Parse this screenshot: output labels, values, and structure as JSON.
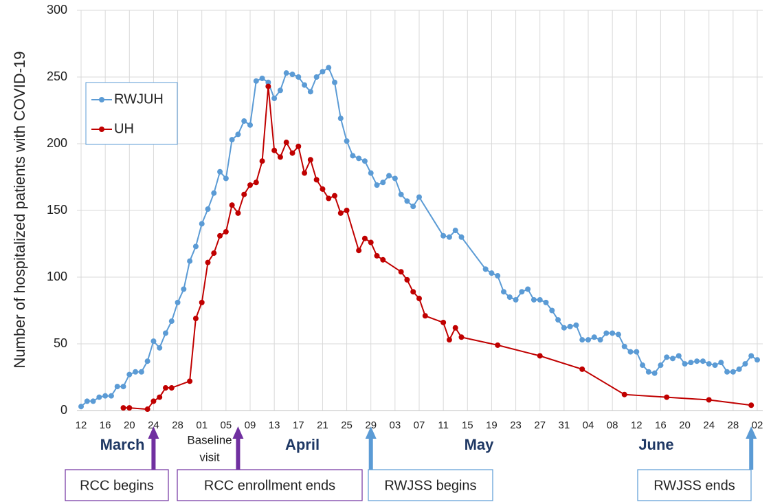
{
  "chart_data": {
    "type": "line",
    "ylabel": "Number of hospitalized patients with COVID-19",
    "ylim": [
      0,
      300
    ],
    "yticks": [
      0,
      50,
      100,
      150,
      200,
      250,
      300
    ],
    "grid": true,
    "xlim": [
      "03-12",
      "07-02"
    ],
    "xticks": [
      {
        "value": "03-12",
        "label": "12"
      },
      {
        "value": "03-16",
        "label": "16"
      },
      {
        "value": "03-20",
        "label": "20"
      },
      {
        "value": "03-24",
        "label": "24"
      },
      {
        "value": "03-28",
        "label": "28"
      },
      {
        "value": "04-01",
        "label": "01"
      },
      {
        "value": "04-05",
        "label": "05"
      },
      {
        "value": "04-09",
        "label": "09"
      },
      {
        "value": "04-13",
        "label": "13"
      },
      {
        "value": "04-17",
        "label": "17"
      },
      {
        "value": "04-21",
        "label": "21"
      },
      {
        "value": "04-25",
        "label": "25"
      },
      {
        "value": "04-29",
        "label": "29"
      },
      {
        "value": "05-03",
        "label": "03"
      },
      {
        "value": "05-07",
        "label": "07"
      },
      {
        "value": "05-11",
        "label": "11"
      },
      {
        "value": "05-15",
        "label": "15"
      },
      {
        "value": "05-19",
        "label": "19"
      },
      {
        "value": "05-23",
        "label": "23"
      },
      {
        "value": "05-27",
        "label": "27"
      },
      {
        "value": "05-31",
        "label": "31"
      },
      {
        "value": "06-04",
        "label": "04"
      },
      {
        "value": "06-08",
        "label": "08"
      },
      {
        "value": "06-12",
        "label": "12"
      },
      {
        "value": "06-16",
        "label": "16"
      },
      {
        "value": "06-20",
        "label": "20"
      },
      {
        "value": "06-24",
        "label": "24"
      },
      {
        "value": "06-28",
        "label": "28"
      },
      {
        "value": "07-02",
        "label": "02"
      }
    ],
    "month_labels": [
      "March",
      "April",
      "May",
      "June"
    ],
    "baseline_note": [
      "Baseline",
      "visit"
    ],
    "legend": "upper left",
    "events": [
      {
        "label": "RCC begins",
        "date": "03-24",
        "color": "#7030a0"
      },
      {
        "label": "RCC enrollment ends",
        "date": "04-07",
        "color": "#7030a0"
      },
      {
        "label": "RWJSS begins",
        "date": "04-29",
        "color": "#5b9bd5"
      },
      {
        "label": "RWJSS ends",
        "date": "07-01",
        "color": "#5b9bd5"
      }
    ],
    "series": [
      {
        "name": "RWJUH",
        "color": "#5b9bd5",
        "x": [
          "03-12",
          "03-13",
          "03-14",
          "03-15",
          "03-16",
          "03-17",
          "03-18",
          "03-19",
          "03-20",
          "03-21",
          "03-22",
          "03-23",
          "03-24",
          "03-25",
          "03-26",
          "03-27",
          "03-28",
          "03-29",
          "03-30",
          "03-31",
          "04-01",
          "04-02",
          "04-03",
          "04-04",
          "04-05",
          "04-06",
          "04-07",
          "04-08",
          "04-09",
          "04-10",
          "04-11",
          "04-12",
          "04-13",
          "04-14",
          "04-15",
          "04-16",
          "04-17",
          "04-18",
          "04-19",
          "04-20",
          "04-21",
          "04-22",
          "04-23",
          "04-24",
          "04-25",
          "04-26",
          "04-27",
          "04-28",
          "04-29",
          "04-30",
          "05-01",
          "05-02",
          "05-03",
          "05-04",
          "05-05",
          "05-06",
          "05-07",
          "05-11",
          "05-12",
          "05-13",
          "05-14",
          "05-18",
          "05-19",
          "05-20",
          "05-21",
          "05-22",
          "05-23",
          "05-24",
          "05-25",
          "05-26",
          "05-27",
          "05-28",
          "05-29",
          "05-30",
          "05-31",
          "06-01",
          "06-02",
          "06-03",
          "06-04",
          "06-05",
          "06-06",
          "06-07",
          "06-08",
          "06-09",
          "06-10",
          "06-11",
          "06-12",
          "06-13",
          "06-14",
          "06-15",
          "06-16",
          "06-17",
          "06-18",
          "06-19",
          "06-20",
          "06-21",
          "06-22",
          "06-23",
          "06-24",
          "06-25",
          "06-26",
          "06-27",
          "06-28",
          "06-29",
          "06-30",
          "07-01",
          "07-02"
        ],
        "values": [
          3,
          7,
          7,
          10,
          11,
          11,
          18,
          18,
          27,
          29,
          29,
          37,
          52,
          47,
          58,
          67,
          81,
          91,
          112,
          123,
          140,
          151,
          163,
          179,
          174,
          203,
          207,
          217,
          214,
          247,
          249,
          246,
          234,
          240,
          253,
          252,
          250,
          244,
          239,
          250,
          254,
          257,
          246,
          219,
          202,
          191,
          189,
          187,
          178,
          169,
          171,
          176,
          174,
          162,
          157,
          153,
          160,
          131,
          130,
          135,
          130,
          106,
          103,
          101,
          89,
          85,
          83,
          89,
          91,
          83,
          83,
          81,
          75,
          68,
          62,
          63,
          64,
          53,
          53,
          55,
          53,
          58,
          58,
          57,
          48,
          44,
          44,
          34,
          29,
          28,
          34,
          40,
          39,
          41,
          35,
          36,
          37,
          37,
          35,
          34,
          36,
          29,
          29,
          31,
          35,
          41,
          38
        ]
      },
      {
        "name": "UH",
        "color": "#c00000",
        "x": [
          "03-19",
          "03-20",
          "03-23",
          "03-24",
          "03-25",
          "03-26",
          "03-27",
          "03-30",
          "03-31",
          "04-01",
          "04-02",
          "04-03",
          "04-04",
          "04-05",
          "04-06",
          "04-07",
          "04-08",
          "04-09",
          "04-10",
          "04-11",
          "04-12",
          "04-13",
          "04-14",
          "04-15",
          "04-16",
          "04-17",
          "04-18",
          "04-19",
          "04-20",
          "04-21",
          "04-22",
          "04-23",
          "04-24",
          "04-25",
          "04-27",
          "04-28",
          "04-29",
          "04-30",
          "05-01",
          "05-04",
          "05-05",
          "05-06",
          "05-07",
          "05-08",
          "05-11",
          "05-12",
          "05-13",
          "05-14",
          "05-20",
          "05-27",
          "06-03",
          "06-10",
          "06-17",
          "06-24",
          "07-01"
        ],
        "values": [
          2,
          2,
          1,
          7,
          10,
          17,
          17,
          22,
          69,
          81,
          111,
          118,
          131,
          134,
          154,
          148,
          162,
          169,
          171,
          187,
          243,
          195,
          190,
          201,
          193,
          198,
          178,
          188,
          173,
          166,
          159,
          161,
          148,
          150,
          120,
          129,
          126,
          116,
          113,
          104,
          98,
          89,
          84,
          71,
          66,
          53,
          62,
          55,
          49,
          41,
          31,
          12,
          10,
          8,
          4
        ]
      }
    ]
  }
}
